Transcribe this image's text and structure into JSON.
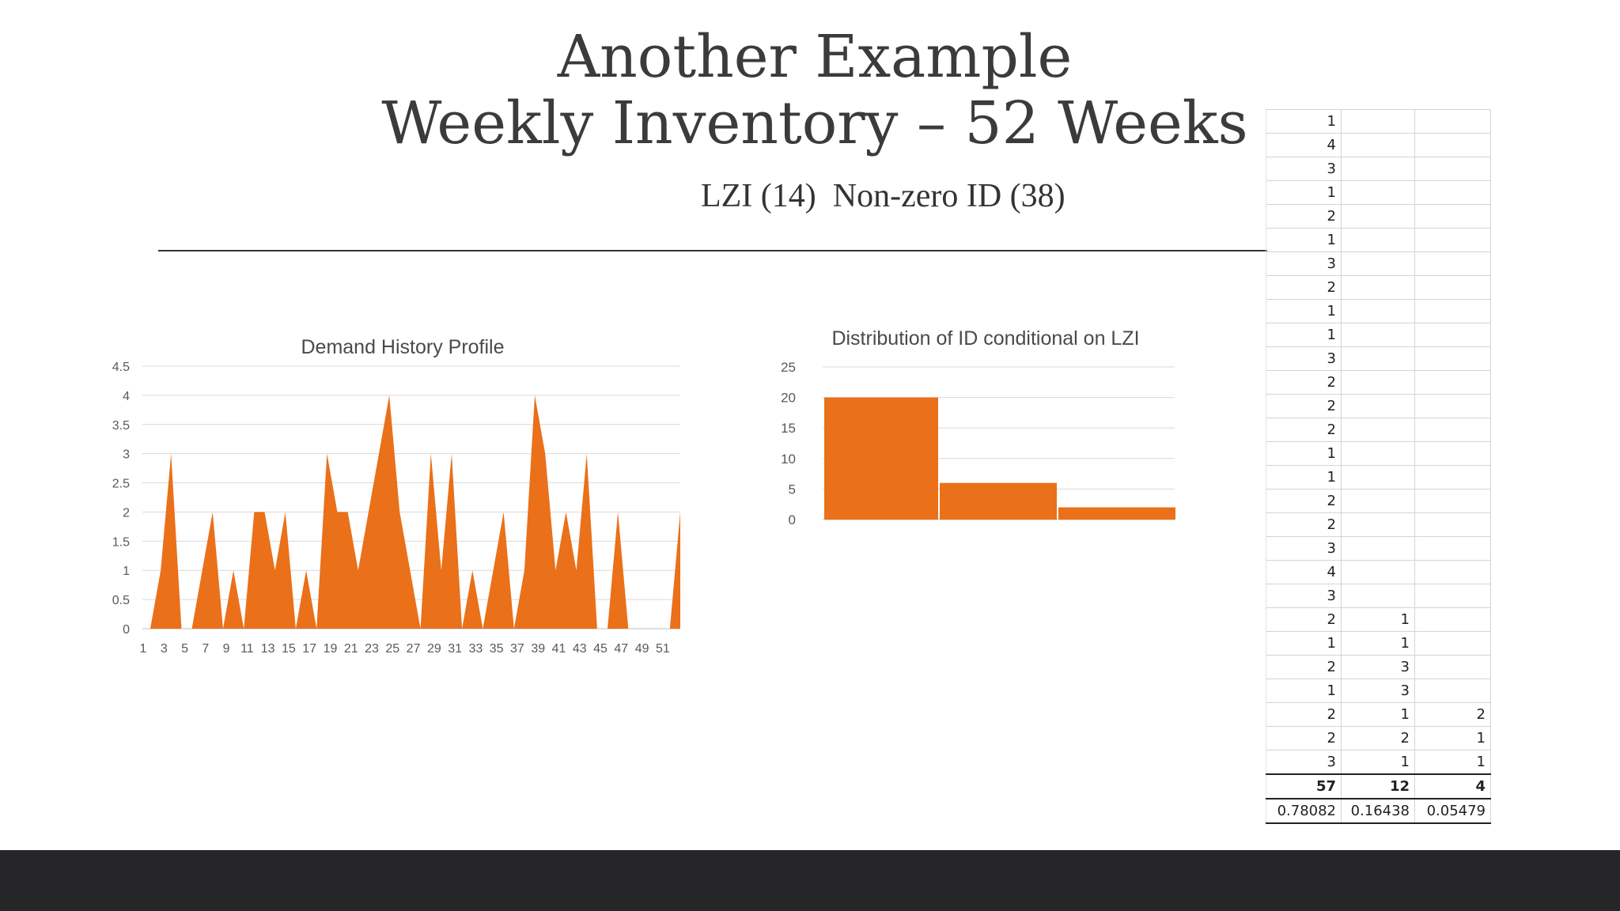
{
  "title": {
    "line1": "Another Example",
    "line2": "Weekly Inventory – 52 Weeks"
  },
  "subtitle": "LZI (14)  Non-zero ID (38)",
  "colors": {
    "accent": "#ea7019",
    "footer": "#262628",
    "text": "#3b3b3b"
  },
  "chart_data": [
    {
      "type": "area",
      "title": "Demand History Profile",
      "x_tick_labels": [
        "1",
        "3",
        "5",
        "7",
        "9",
        "11",
        "13",
        "15",
        "17",
        "19",
        "21",
        "23",
        "25",
        "27",
        "29",
        "31",
        "33",
        "35",
        "37",
        "39",
        "41",
        "43",
        "45",
        "47",
        "49",
        "51"
      ],
      "y_tick_labels": [
        "0",
        "0.5",
        "1",
        "1.5",
        "2",
        "2.5",
        "3",
        "3.5",
        "4",
        "4.5"
      ],
      "ylim": [
        0,
        4.5
      ],
      "x": [
        1,
        2,
        3,
        4,
        5,
        6,
        7,
        8,
        9,
        10,
        11,
        12,
        13,
        14,
        15,
        16,
        17,
        18,
        19,
        20,
        21,
        22,
        23,
        24,
        25,
        26,
        27,
        28,
        29,
        30,
        31,
        32,
        33,
        34,
        35,
        36,
        37,
        38,
        39,
        40,
        41,
        42,
        43,
        44,
        45,
        46,
        47,
        48,
        49,
        50,
        51,
        52
      ],
      "values": [
        0,
        1,
        3,
        0,
        0,
        1,
        2,
        0,
        1,
        0,
        2,
        2,
        1,
        2,
        0,
        1,
        0,
        3,
        2,
        2,
        1,
        2,
        3,
        4,
        2,
        1,
        0,
        3,
        1,
        3,
        0,
        1,
        0,
        1,
        2,
        0,
        1,
        4,
        3,
        1,
        2,
        1,
        3,
        0,
        0,
        2,
        0,
        0,
        0,
        0,
        0,
        2
      ],
      "grid": true,
      "legend": "none"
    },
    {
      "type": "bar",
      "title": "Distribution of ID conditional on LZI",
      "y_tick_labels": [
        "0",
        "5",
        "10",
        "15",
        "20",
        "25"
      ],
      "ylim": [
        0,
        25
      ],
      "values": [
        20,
        6,
        2
      ],
      "grid": true,
      "legend": "none"
    }
  ],
  "sheet": {
    "rows": [
      [
        "1",
        "",
        ""
      ],
      [
        "4",
        "",
        ""
      ],
      [
        "3",
        "",
        ""
      ],
      [
        "1",
        "",
        ""
      ],
      [
        "2",
        "",
        ""
      ],
      [
        "1",
        "",
        ""
      ],
      [
        "3",
        "",
        ""
      ],
      [
        "2",
        "",
        ""
      ],
      [
        "1",
        "",
        ""
      ],
      [
        "1",
        "",
        ""
      ],
      [
        "3",
        "",
        ""
      ],
      [
        "2",
        "",
        ""
      ],
      [
        "2",
        "",
        ""
      ],
      [
        "2",
        "",
        ""
      ],
      [
        "1",
        "",
        ""
      ],
      [
        "1",
        "",
        ""
      ],
      [
        "2",
        "",
        ""
      ],
      [
        "2",
        "",
        ""
      ],
      [
        "3",
        "",
        ""
      ],
      [
        "4",
        "",
        ""
      ],
      [
        "3",
        "",
        ""
      ],
      [
        "2",
        "1",
        ""
      ],
      [
        "1",
        "1",
        ""
      ],
      [
        "2",
        "3",
        ""
      ],
      [
        "1",
        "3",
        ""
      ],
      [
        "2",
        "1",
        "2"
      ],
      [
        "2",
        "2",
        "1"
      ],
      [
        "3",
        "1",
        "1"
      ]
    ],
    "totals": [
      "57",
      "12",
      "4"
    ],
    "ratios": [
      "0.78082",
      "0.16438",
      "0.05479"
    ]
  }
}
